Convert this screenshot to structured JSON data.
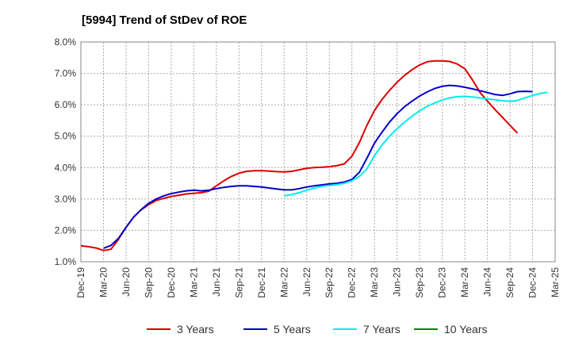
{
  "title": "[5994]  Trend of StDev of ROE",
  "chart_data": {
    "type": "line",
    "title": "[5994]  Trend of StDev of ROE",
    "xlabel": "",
    "ylabel": "",
    "ylim": [
      1.0,
      8.0
    ],
    "y_ticks": [
      "1.0%",
      "2.0%",
      "3.0%",
      "4.0%",
      "5.0%",
      "6.0%",
      "7.0%",
      "8.0%"
    ],
    "x_ticks": [
      "Dec-19",
      "Mar-20",
      "Jun-20",
      "Sep-20",
      "Dec-20",
      "Mar-21",
      "Jun-21",
      "Sep-21",
      "Dec-21",
      "Mar-22",
      "Jun-22",
      "Sep-22",
      "Dec-22",
      "Mar-23",
      "Jun-23",
      "Sep-23",
      "Dec-23",
      "Mar-24",
      "Jun-24",
      "Sep-24",
      "Dec-24",
      "Mar-25"
    ],
    "grid": true,
    "legend_position": "bottom",
    "series": [
      {
        "name": "3 Years",
        "color": "#dd0000",
        "start_month": 0,
        "values": [
          1.51,
          1.48,
          1.44,
          1.36,
          1.4,
          1.72,
          2.1,
          2.42,
          2.65,
          2.82,
          2.95,
          3.02,
          3.08,
          3.12,
          3.16,
          3.18,
          3.2,
          3.25,
          3.42,
          3.58,
          3.72,
          3.82,
          3.88,
          3.9,
          3.9,
          3.89,
          3.87,
          3.86,
          3.88,
          3.93,
          3.98,
          4.0,
          4.01,
          4.03,
          4.06,
          4.12,
          4.36,
          4.8,
          5.35,
          5.82,
          6.17,
          6.46,
          6.72,
          6.94,
          7.12,
          7.27,
          7.37,
          7.4,
          7.4,
          7.38,
          7.3,
          7.15,
          6.8,
          6.4,
          6.12,
          5.85,
          5.6,
          5.35,
          5.1
        ]
      },
      {
        "name": "5 Years",
        "color": "#0000cc",
        "start_month": 3,
        "values": [
          1.43,
          1.52,
          1.75,
          2.1,
          2.42,
          2.66,
          2.86,
          3.0,
          3.1,
          3.17,
          3.22,
          3.26,
          3.28,
          3.26,
          3.28,
          3.33,
          3.37,
          3.4,
          3.42,
          3.42,
          3.4,
          3.38,
          3.35,
          3.32,
          3.29,
          3.29,
          3.33,
          3.38,
          3.42,
          3.45,
          3.48,
          3.5,
          3.54,
          3.62,
          3.85,
          4.3,
          4.78,
          5.13,
          5.45,
          5.72,
          5.94,
          6.12,
          6.28,
          6.41,
          6.52,
          6.59,
          6.62,
          6.6,
          6.56,
          6.51,
          6.45,
          6.39,
          6.33,
          6.3,
          6.35,
          6.42,
          6.43,
          6.42
        ]
      },
      {
        "name": "7 Years",
        "color": "#00eeee",
        "start_month": 27,
        "values": [
          3.1,
          3.14,
          3.2,
          3.28,
          3.35,
          3.4,
          3.43,
          3.46,
          3.5,
          3.58,
          3.72,
          3.96,
          4.38,
          4.72,
          5.0,
          5.24,
          5.45,
          5.64,
          5.81,
          5.95,
          6.06,
          6.15,
          6.22,
          6.26,
          6.27,
          6.25,
          6.22,
          6.19,
          6.16,
          6.13,
          6.11,
          6.14,
          6.22,
          6.3,
          6.36,
          6.4
        ]
      },
      {
        "name": "10 Years",
        "color": "#008800",
        "start_month": 0,
        "values": []
      }
    ]
  }
}
